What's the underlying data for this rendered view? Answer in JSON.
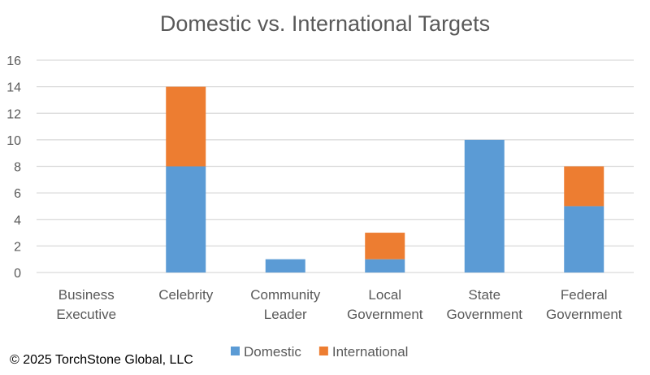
{
  "chart_data": {
    "type": "bar",
    "stacked": true,
    "title": "Domestic vs. International Targets",
    "xlabel": "",
    "ylabel": "",
    "ylim": [
      0,
      16
    ],
    "yticks": [
      0,
      2,
      4,
      6,
      8,
      10,
      12,
      14,
      16
    ],
    "grid": true,
    "legend": "bottom",
    "categories": [
      [
        "Business",
        "Executive"
      ],
      [
        "Celebrity"
      ],
      [
        "Community",
        "Leader"
      ],
      [
        "Local",
        "Government"
      ],
      [
        "State",
        "Government"
      ],
      [
        "Federal",
        "Government"
      ]
    ],
    "series": [
      {
        "name": "Domestic",
        "color": "#5B9BD5",
        "values": [
          0,
          8,
          1,
          1,
          10,
          5
        ]
      },
      {
        "name": "International",
        "color": "#ED7D31",
        "values": [
          0,
          6,
          0,
          2,
          0,
          3
        ]
      }
    ]
  },
  "footer": {
    "copyright": "© 2025 TorchStone Global, LLC"
  }
}
